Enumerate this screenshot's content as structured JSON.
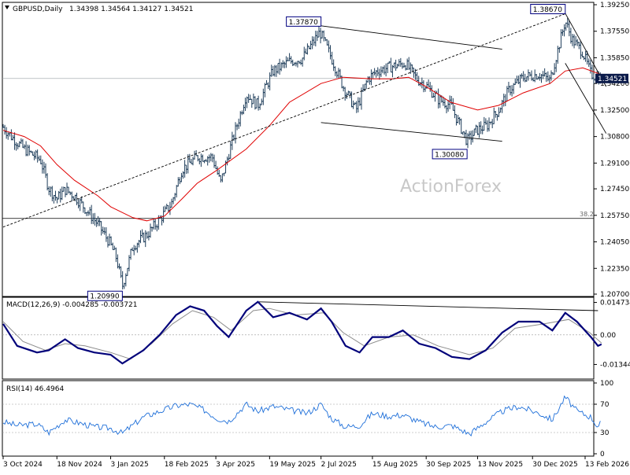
{
  "header": {
    "symbol": "GBPUSD,Daily",
    "ohlc": "1.34398 1.34564 1.34127 1.34521"
  },
  "watermark": "ActionForex",
  "colors": {
    "bars": "#1e3d5a",
    "ma": "#e00000",
    "macd": "#00007a",
    "signal": "#8c8c8c",
    "rsi": "#1e6fd9",
    "trendline": "#000000",
    "price_tag_bg": "#0b1b4a",
    "label_border": "#000080"
  },
  "chart_data": [
    {
      "type": "candlestick",
      "title": "GBPUSD,Daily",
      "y_ticks": [
        "1.39250",
        "1.37550",
        "1.35850",
        "1.34200",
        "1.32500",
        "1.30800",
        "1.29100",
        "1.27450",
        "1.25750",
        "1.24050",
        "1.22350",
        "1.20700"
      ],
      "ylim": [
        1.207,
        1.3925
      ],
      "x_ticks": [
        "3 Oct 2024",
        "18 Nov 2024",
        "3 Jan 2025",
        "18 Feb 2025",
        "3 Apr 2025",
        "19 May 2025",
        "2 Jul 2025",
        "15 Aug 2025",
        "30 Sep 2025",
        "13 Nov 2025",
        "30 Dec 2025",
        "13 Feb 2026"
      ],
      "current_price": "1.34521",
      "level_label": "38.2",
      "level_value": 1.2555,
      "annotations": [
        {
          "label": "1.37870",
          "x": "2 Jul 2025",
          "value": 1.3787
        },
        {
          "label": "1.38670",
          "x": "27 Jan 2026",
          "value": 1.3867
        },
        {
          "label": "1.30080",
          "x": "4 Nov 2025",
          "value": 1.3008
        },
        {
          "label": "1.20990",
          "x": "13 Jan 2025",
          "value": 1.2099
        }
      ],
      "close_path": [
        [
          "3 Oct 2024",
          1.314
        ],
        [
          "10 Oct 2024",
          1.308
        ],
        [
          "21 Oct 2024",
          1.3
        ],
        [
          "4 Nov 2024",
          1.293
        ],
        [
          "11 Nov 2024",
          1.275
        ],
        [
          "18 Nov 2024",
          1.268
        ],
        [
          "25 Nov 2024",
          1.274
        ],
        [
          "3 Dec 2024",
          1.27
        ],
        [
          "12 Dec 2024",
          1.262
        ],
        [
          "23 Dec 2024",
          1.252
        ],
        [
          "2 Jan 2025",
          1.24
        ],
        [
          "8 Jan 2025",
          1.23
        ],
        [
          "13 Jan 2025",
          1.212
        ],
        [
          "22 Jan 2025",
          1.238
        ],
        [
          "3 Feb 2025",
          1.245
        ],
        [
          "13 Feb 2025",
          1.254
        ],
        [
          "24 Feb 2025",
          1.265
        ],
        [
          "5 Mar 2025",
          1.287
        ],
        [
          "18 Mar 2025",
          1.295
        ],
        [
          "31 Mar 2025",
          1.295
        ],
        [
          "7 Apr 2025",
          1.278
        ],
        [
          "17 Apr 2025",
          1.305
        ],
        [
          "29 Apr 2025",
          1.335
        ],
        [
          "9 May 2025",
          1.328
        ],
        [
          "22 May 2025",
          1.35
        ],
        [
          "5 Jun 2025",
          1.356
        ],
        [
          "16 Jun 2025",
          1.358
        ],
        [
          "1 Jul 2025",
          1.375
        ],
        [
          "10 Jul 2025",
          1.36
        ],
        [
          "21 Jul 2025",
          1.34
        ],
        [
          "1 Aug 2025",
          1.325
        ],
        [
          "11 Aug 2025",
          1.345
        ],
        [
          "19 Aug 2025",
          1.35
        ],
        [
          "1 Sep 2025",
          1.353
        ],
        [
          "12 Sep 2025",
          1.355
        ],
        [
          "22 Sep 2025",
          1.345
        ],
        [
          "1 Oct 2025",
          1.34
        ],
        [
          "10 Oct 2025",
          1.332
        ],
        [
          "21 Oct 2025",
          1.328
        ],
        [
          "4 Nov 2025",
          1.305
        ],
        [
          "12 Nov 2025",
          1.312
        ],
        [
          "21 Nov 2025",
          1.315
        ],
        [
          "1 Dec 2025",
          1.325
        ],
        [
          "10 Dec 2025",
          1.338
        ],
        [
          "22 Dec 2025",
          1.346
        ],
        [
          "5 Jan 2026",
          1.348
        ],
        [
          "14 Jan 2026",
          1.344
        ],
        [
          "27 Jan 2026",
          1.382
        ],
        [
          "2 Feb 2026",
          1.37
        ],
        [
          "11 Feb 2026",
          1.362
        ],
        [
          "18 Feb 2026",
          1.348
        ],
        [
          "26 Feb 2026",
          1.3452
        ]
      ],
      "ma_path": [
        [
          "3 Oct 2024",
          1.312
        ],
        [
          "21 Oct 2024",
          1.308
        ],
        [
          "4 Nov 2024",
          1.302
        ],
        [
          "18 Nov 2024",
          1.29
        ],
        [
          "3 Dec 2024",
          1.28
        ],
        [
          "23 Dec 2024",
          1.27
        ],
        [
          "3 Jan 2025",
          1.263
        ],
        [
          "22 Jan 2025",
          1.256
        ],
        [
          "3 Feb 2025",
          1.254
        ],
        [
          "18 Feb 2025",
          1.257
        ],
        [
          "5 Mar 2025",
          1.268
        ],
        [
          "18 Mar 2025",
          1.278
        ],
        [
          "3 Apr 2025",
          1.286
        ],
        [
          "29 Apr 2025",
          1.3
        ],
        [
          "19 May 2025",
          1.315
        ],
        [
          "5 Jun 2025",
          1.33
        ],
        [
          "2 Jul 2025",
          1.342
        ],
        [
          "21 Jul 2025",
          1.346
        ],
        [
          "15 Aug 2025",
          1.345
        ],
        [
          "1 Sep 2025",
          1.345
        ],
        [
          "15 Sep 2025",
          1.346
        ],
        [
          "30 Sep 2025",
          1.34
        ],
        [
          "21 Oct 2025",
          1.33
        ],
        [
          "13 Nov 2025",
          1.325
        ],
        [
          "1 Dec 2025",
          1.328
        ],
        [
          "22 Dec 2025",
          1.336
        ],
        [
          "14 Jan 2026",
          1.342
        ],
        [
          "27 Jan 2026",
          1.35
        ],
        [
          "11 Feb 2026",
          1.352
        ],
        [
          "26 Feb 2026",
          1.348
        ]
      ],
      "lines": [
        {
          "name": "rising-trendline",
          "style": "dashed",
          "points": [
            [
              "3 Oct 2024",
              1.25
            ],
            [
              "27 Jan 2026",
              1.3867
            ]
          ]
        },
        {
          "name": "channel-upper-left",
          "style": "solid",
          "points": [
            [
              "2 Jul 2025",
              1.379
            ],
            [
              "4 Dec 2025",
              1.364
            ]
          ]
        },
        {
          "name": "channel-lower-left",
          "style": "solid",
          "points": [
            [
              "2 Jul 2025",
              1.317
            ],
            [
              "4 Dec 2025",
              1.305
            ]
          ]
        },
        {
          "name": "channel-upper-right",
          "style": "solid",
          "points": [
            [
              "27 Jan 2026",
              1.387
            ],
            [
              "3 Mar 2026",
              1.34
            ]
          ]
        },
        {
          "name": "channel-lower-right",
          "style": "solid",
          "points": [
            [
              "27 Jan 2026",
              1.355
            ],
            [
              "3 Mar 2026",
              1.31
            ]
          ]
        }
      ]
    },
    {
      "type": "line",
      "title": "MACD(12,26,9) -0.004285 -0.003721",
      "y_ticks": [
        "0.014734",
        "0.00",
        "-0.013442"
      ],
      "ylim": [
        -0.019,
        0.016
      ],
      "series": [
        {
          "name": "MACD",
          "points": [
            [
              "3 Oct 2024",
              0.005
            ],
            [
              "15 Oct 2024",
              -0.005
            ],
            [
              "1 Nov 2024",
              -0.008
            ],
            [
              "11 Nov 2024",
              -0.007
            ],
            [
              "25 Nov 2024",
              -0.002
            ],
            [
              "6 Dec 2024",
              -0.006
            ],
            [
              "20 Dec 2024",
              -0.008
            ],
            [
              "3 Jan 2025",
              -0.009
            ],
            [
              "13 Jan 2025",
              -0.013
            ],
            [
              "31 Jan 2025",
              -0.007
            ],
            [
              "14 Feb 2025",
              0.0
            ],
            [
              "28 Feb 2025",
              0.009
            ],
            [
              "12 Mar 2025",
              0.013
            ],
            [
              "24 Mar 2025",
              0.011
            ],
            [
              "4 Apr 2025",
              0.004
            ],
            [
              "14 Apr 2025",
              -0.001
            ],
            [
              "29 Apr 2025",
              0.011
            ],
            [
              "9 May 2025",
              0.015
            ],
            [
              "22 May 2025",
              0.008
            ],
            [
              "5 Jun 2025",
              0.01
            ],
            [
              "20 Jun 2025",
              0.007
            ],
            [
              "2 Jul 2025",
              0.012
            ],
            [
              "11 Jul 2025",
              0.006
            ],
            [
              "23 Jul 2025",
              -0.005
            ],
            [
              "4 Aug 2025",
              -0.008
            ],
            [
              "15 Aug 2025",
              -0.001
            ],
            [
              "29 Aug 2025",
              -0.001
            ],
            [
              "10 Sep 2025",
              0.002
            ],
            [
              "24 Sep 2025",
              -0.004
            ],
            [
              "8 Oct 2025",
              -0.006
            ],
            [
              "22 Oct 2025",
              -0.01
            ],
            [
              "6 Nov 2025",
              -0.011
            ],
            [
              "20 Nov 2025",
              -0.007
            ],
            [
              "4 Dec 2025",
              0.001
            ],
            [
              "18 Dec 2025",
              0.006
            ],
            [
              "5 Jan 2026",
              0.006
            ],
            [
              "16 Jan 2026",
              0.002
            ],
            [
              "27 Jan 2026",
              0.01
            ],
            [
              "6 Feb 2026",
              0.006
            ],
            [
              "18 Feb 2026",
              -0.001
            ],
            [
              "24 Feb 2026",
              -0.005
            ],
            [
              "27 Feb 2026",
              -0.0043
            ]
          ]
        },
        {
          "name": "Signal",
          "points": [
            [
              "3 Oct 2024",
              0.006
            ],
            [
              "20 Oct 2024",
              -0.003
            ],
            [
              "8 Nov 2024",
              -0.007
            ],
            [
              "25 Nov 2024",
              -0.004
            ],
            [
              "12 Dec 2024",
              -0.005
            ],
            [
              "3 Jan 2025",
              -0.008
            ],
            [
              "20 Jan 2025",
              -0.011
            ],
            [
              "7 Feb 2025",
              -0.004
            ],
            [
              "25 Feb 2025",
              0.005
            ],
            [
              "14 Mar 2025",
              0.011
            ],
            [
              "1 Apr 2025",
              0.008
            ],
            [
              "16 Apr 2025",
              0.002
            ],
            [
              "5 May 2025",
              0.011
            ],
            [
              "19 May 2025",
              0.012
            ],
            [
              "10 Jun 2025",
              0.009
            ],
            [
              "4 Jul 2025",
              0.01
            ],
            [
              "21 Jul 2025",
              0.001
            ],
            [
              "8 Aug 2025",
              -0.005
            ],
            [
              "29 Aug 2025",
              -0.001
            ],
            [
              "19 Sep 2025",
              0.0
            ],
            [
              "10 Oct 2025",
              -0.005
            ],
            [
              "6 Nov 2025",
              -0.009
            ],
            [
              "26 Nov 2025",
              -0.006
            ],
            [
              "15 Dec 2025",
              0.003
            ],
            [
              "9 Jan 2026",
              0.005
            ],
            [
              "30 Jan 2026",
              0.007
            ],
            [
              "17 Feb 2026",
              0.001
            ],
            [
              "27 Feb 2026",
              -0.0037
            ]
          ]
        }
      ],
      "lines": [
        {
          "name": "macd-trendline",
          "style": "solid",
          "points": [
            [
              "10 May 2025",
              0.015
            ],
            [
              "24 Feb 2026",
              0.011
            ]
          ]
        }
      ]
    },
    {
      "type": "line",
      "title": "RSI(14) 46.4964",
      "y_ticks": [
        "100",
        "70",
        "30",
        "0"
      ],
      "ylim": [
        0,
        100
      ],
      "levels": [
        70,
        30
      ],
      "series": [
        {
          "name": "RSI",
          "points": [
            [
              "3 Oct 2024",
              45
            ],
            [
              "15 Oct 2024",
              40
            ],
            [
              "1 Nov 2024",
              42
            ],
            [
              "11 Nov 2024",
              30
            ],
            [
              "25 Nov 2024",
              48
            ],
            [
              "6 Dec 2024",
              44
            ],
            [
              "20 Dec 2024",
              38
            ],
            [
              "3 Jan 2025",
              36
            ],
            [
              "13 Jan 2025",
              29
            ],
            [
              "31 Jan 2025",
              52
            ],
            [
              "14 Feb 2025",
              60
            ],
            [
              "28 Feb 2025",
              68
            ],
            [
              "12 Mar 2025",
              70
            ],
            [
              "24 Mar 2025",
              62
            ],
            [
              "4 Apr 2025",
              50
            ],
            [
              "14 Apr 2025",
              46
            ],
            [
              "29 Apr 2025",
              70
            ],
            [
              "9 May 2025",
              60
            ],
            [
              "22 May 2025",
              67
            ],
            [
              "5 Jun 2025",
              62
            ],
            [
              "20 Jun 2025",
              57
            ],
            [
              "2 Jul 2025",
              70
            ],
            [
              "11 Jul 2025",
              50
            ],
            [
              "23 Jul 2025",
              38
            ],
            [
              "4 Aug 2025",
              40
            ],
            [
              "15 Aug 2025",
              57
            ],
            [
              "29 Aug 2025",
              53
            ],
            [
              "10 Sep 2025",
              55
            ],
            [
              "24 Sep 2025",
              45
            ],
            [
              "8 Oct 2025",
              38
            ],
            [
              "22 Oct 2025",
              40
            ],
            [
              "6 Nov 2025",
              28
            ],
            [
              "20 Nov 2025",
              45
            ],
            [
              "4 Dec 2025",
              60
            ],
            [
              "18 Dec 2025",
              67
            ],
            [
              "5 Jan 2026",
              57
            ],
            [
              "16 Jan 2026",
              48
            ],
            [
              "27 Jan 2026",
              80
            ],
            [
              "6 Feb 2026",
              60
            ],
            [
              "18 Feb 2026",
              52
            ],
            [
              "24 Feb 2026",
              38
            ],
            [
              "27 Feb 2026",
              46
            ]
          ]
        }
      ]
    }
  ]
}
